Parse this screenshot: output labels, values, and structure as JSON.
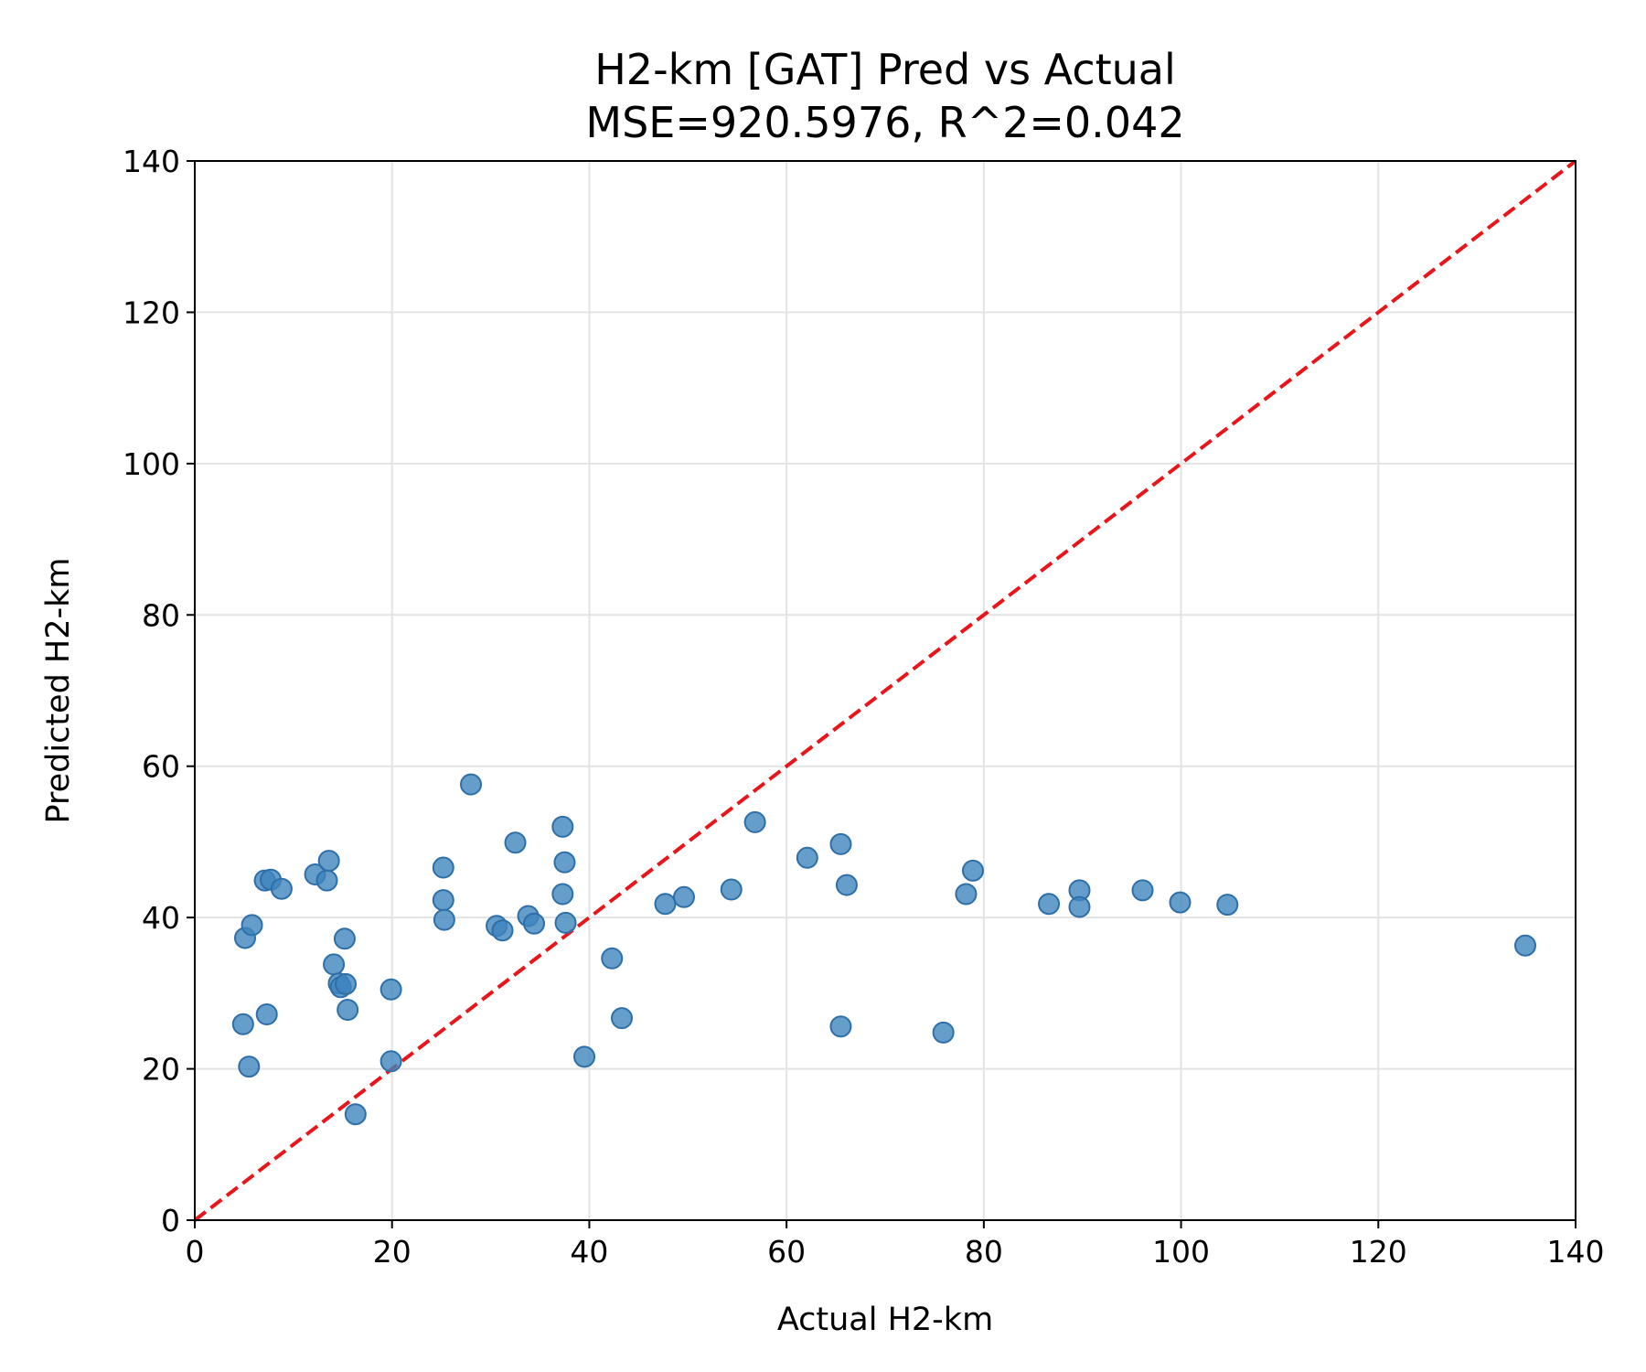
{
  "chart_data": {
    "type": "scatter",
    "title": "H2-km [GAT] Pred vs Actual",
    "subtitle": "MSE=920.5976, R^2=0.042",
    "xlabel": "Actual H2-km",
    "ylabel": "Predicted H2-km",
    "xlim": [
      0,
      140
    ],
    "ylim": [
      0,
      140
    ],
    "xticks": [
      0,
      20,
      40,
      60,
      80,
      100,
      120,
      140
    ],
    "yticks": [
      0,
      20,
      40,
      60,
      80,
      100,
      120,
      140
    ],
    "xtick_labels": [
      "0",
      "20",
      "40",
      "60",
      "80",
      "100",
      "120",
      "140"
    ],
    "ytick_labels": [
      "0",
      "20",
      "40",
      "60",
      "80",
      "100",
      "120",
      "140"
    ],
    "grid": true,
    "reference_line": {
      "style": "dashed",
      "color": "#e8161a",
      "from": [
        0,
        0
      ],
      "to": [
        140,
        140
      ]
    },
    "point_color": "#3f85be",
    "points": [
      {
        "x": 4.9,
        "y": 25.9
      },
      {
        "x": 5.1,
        "y": 37.3
      },
      {
        "x": 5.5,
        "y": 20.3
      },
      {
        "x": 5.8,
        "y": 39.0
      },
      {
        "x": 7.1,
        "y": 44.9
      },
      {
        "x": 7.3,
        "y": 27.2
      },
      {
        "x": 7.7,
        "y": 45.0
      },
      {
        "x": 8.8,
        "y": 43.8
      },
      {
        "x": 12.2,
        "y": 45.7
      },
      {
        "x": 13.4,
        "y": 44.9
      },
      {
        "x": 13.6,
        "y": 47.5
      },
      {
        "x": 14.1,
        "y": 33.8
      },
      {
        "x": 14.6,
        "y": 31.3
      },
      {
        "x": 14.8,
        "y": 30.8
      },
      {
        "x": 15.2,
        "y": 37.2
      },
      {
        "x": 15.3,
        "y": 31.2
      },
      {
        "x": 15.5,
        "y": 27.8
      },
      {
        "x": 16.3,
        "y": 14.0
      },
      {
        "x": 19.9,
        "y": 21.0
      },
      {
        "x": 19.9,
        "y": 30.5
      },
      {
        "x": 25.2,
        "y": 46.6
      },
      {
        "x": 25.2,
        "y": 42.3
      },
      {
        "x": 25.3,
        "y": 39.7
      },
      {
        "x": 28.0,
        "y": 57.6
      },
      {
        "x": 30.6,
        "y": 38.9
      },
      {
        "x": 31.2,
        "y": 38.3
      },
      {
        "x": 32.5,
        "y": 49.9
      },
      {
        "x": 33.8,
        "y": 40.2
      },
      {
        "x": 34.4,
        "y": 39.2
      },
      {
        "x": 37.3,
        "y": 52.0
      },
      {
        "x": 37.3,
        "y": 43.1
      },
      {
        "x": 37.5,
        "y": 47.3
      },
      {
        "x": 37.6,
        "y": 39.3
      },
      {
        "x": 39.5,
        "y": 21.6
      },
      {
        "x": 42.3,
        "y": 34.6
      },
      {
        "x": 43.3,
        "y": 26.7
      },
      {
        "x": 47.7,
        "y": 41.8
      },
      {
        "x": 49.6,
        "y": 42.7
      },
      {
        "x": 54.4,
        "y": 43.7
      },
      {
        "x": 56.8,
        "y": 52.6
      },
      {
        "x": 62.1,
        "y": 47.9
      },
      {
        "x": 65.5,
        "y": 49.7
      },
      {
        "x": 65.5,
        "y": 25.6
      },
      {
        "x": 66.1,
        "y": 44.3
      },
      {
        "x": 75.9,
        "y": 24.8
      },
      {
        "x": 78.2,
        "y": 43.1
      },
      {
        "x": 78.9,
        "y": 46.2
      },
      {
        "x": 86.6,
        "y": 41.8
      },
      {
        "x": 89.7,
        "y": 43.6
      },
      {
        "x": 89.7,
        "y": 41.4
      },
      {
        "x": 96.1,
        "y": 43.6
      },
      {
        "x": 99.9,
        "y": 42.0
      },
      {
        "x": 104.7,
        "y": 41.7
      },
      {
        "x": 134.9,
        "y": 36.3
      }
    ]
  }
}
